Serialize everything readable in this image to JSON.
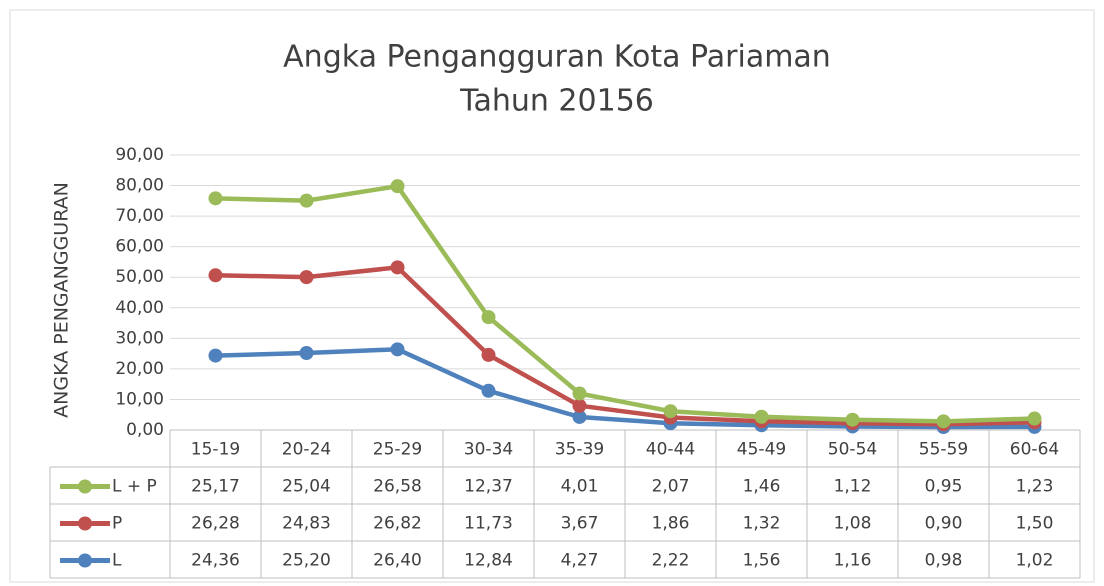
{
  "chart_data": {
    "type": "line",
    "stacked": true,
    "title": [
      "Angka Pengangguran Kota Pariaman",
      "Tahun 20156"
    ],
    "y_label": "ANGKA PENGANGGURAN",
    "categories": [
      "15-19",
      "20-24",
      "25-29",
      "30-34",
      "35-39",
      "40-44",
      "45-49",
      "50-54",
      "55-59",
      "60-64"
    ],
    "series": [
      {
        "name": "L + P",
        "color": "#9bbb59",
        "values": [
          25.17,
          25.04,
          26.58,
          12.37,
          4.01,
          2.07,
          1.46,
          1.12,
          0.95,
          1.23
        ],
        "value_labels": [
          "25,17",
          "25,04",
          "26,58",
          "12,37",
          "4,01",
          "2,07",
          "1,46",
          "1,12",
          "0,95",
          "1,23"
        ]
      },
      {
        "name": "P",
        "color": "#c0504d",
        "values": [
          26.28,
          24.83,
          26.82,
          11.73,
          3.67,
          1.86,
          1.32,
          1.08,
          0.9,
          1.5
        ],
        "value_labels": [
          "26,28",
          "24,83",
          "26,82",
          "11,73",
          "3,67",
          "1,86",
          "1,32",
          "1,08",
          "0,90",
          "1,50"
        ]
      },
      {
        "name": "L",
        "color": "#4f81bd",
        "values": [
          24.36,
          25.2,
          26.4,
          12.84,
          4.27,
          2.22,
          1.56,
          1.16,
          0.98,
          1.02
        ],
        "value_labels": [
          "24,36",
          "25,20",
          "26,40",
          "12,84",
          "4,27",
          "2,22",
          "1,56",
          "1,16",
          "0,98",
          "1,02"
        ]
      }
    ],
    "ylim": [
      0,
      90
    ],
    "yticks": [
      {
        "value": 0,
        "label": "0,00"
      },
      {
        "value": 10,
        "label": "10,00"
      },
      {
        "value": 20,
        "label": "20,00"
      },
      {
        "value": 30,
        "label": "30,00"
      },
      {
        "value": 40,
        "label": "40,00"
      },
      {
        "value": 50,
        "label": "50,00"
      },
      {
        "value": 60,
        "label": "60,00"
      },
      {
        "value": 70,
        "label": "70,00"
      },
      {
        "value": 80,
        "label": "80,00"
      },
      {
        "value": 90,
        "label": "90,00"
      }
    ],
    "grid": true
  }
}
